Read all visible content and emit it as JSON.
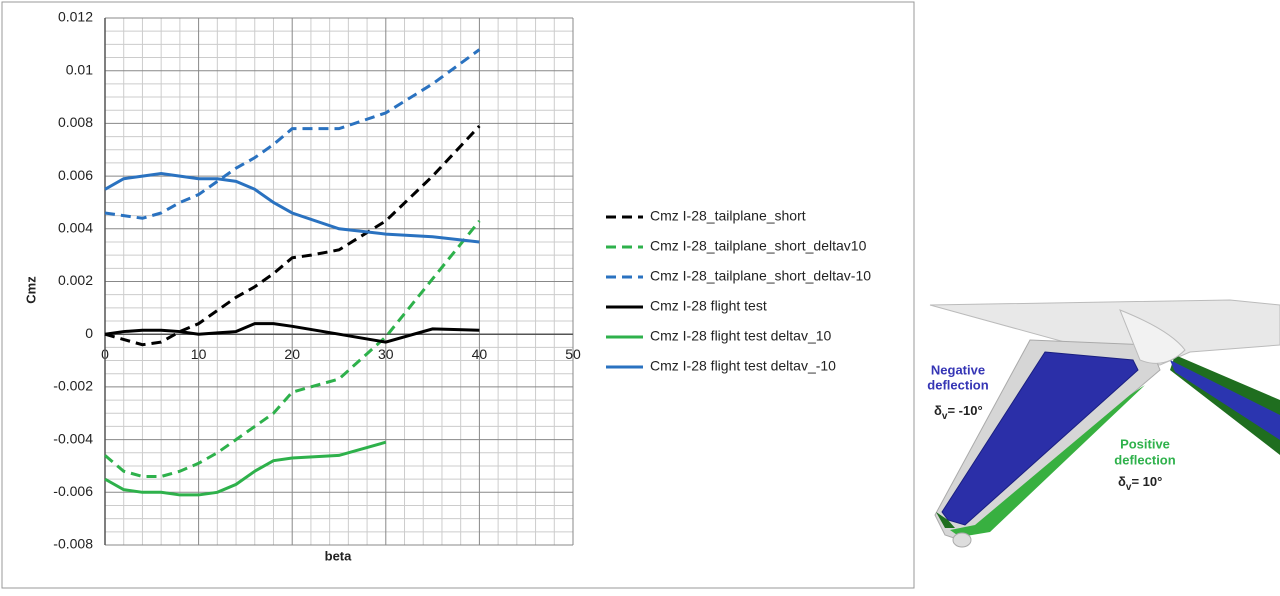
{
  "chart_data": {
    "type": "line",
    "xlabel": "beta",
    "ylabel": "Cmz",
    "xlim": [
      0,
      50
    ],
    "xticks": [
      0,
      10,
      20,
      30,
      40,
      50
    ],
    "ylim": [
      -0.008,
      0.012
    ],
    "yticks": [
      0.012,
      0.01,
      0.008,
      0.006,
      0.004,
      0.002,
      0,
      -0.002,
      -0.004,
      -0.006,
      -0.008
    ],
    "grid": true,
    "minor_grid": true,
    "legend": "right",
    "series": [
      {
        "name": "Cmz I-28_tailplane_short",
        "color": "#000000",
        "dashed": true,
        "x": [
          0,
          4,
          6,
          8,
          10,
          12,
          14,
          16,
          18,
          20,
          22,
          25,
          30,
          35,
          40
        ],
        "values": [
          0,
          -0.0004,
          -0.0003,
          0.0001,
          0.0004,
          0.0009,
          0.0014,
          0.0018,
          0.0023,
          0.0029,
          0.003,
          0.0032,
          0.0043,
          0.006,
          0.0079
        ]
      },
      {
        "name": "Cmz I-28_tailplane_short_deltav10",
        "color": "#2eb14b",
        "dashed": true,
        "x": [
          0,
          2,
          4,
          6,
          8,
          10,
          12,
          14,
          16,
          18,
          20,
          25,
          30,
          35,
          40
        ],
        "values": [
          -0.0046,
          -0.0052,
          -0.0054,
          -0.0054,
          -0.0052,
          -0.0049,
          -0.0045,
          -0.004,
          -0.0035,
          -0.003,
          -0.0022,
          -0.0017,
          -0.0001,
          0.0021,
          0.0043
        ]
      },
      {
        "name": "Cmz I-28_tailplane_short_deltav-10",
        "color": "#2a72c0",
        "dashed": true,
        "x": [
          0,
          2,
          4,
          6,
          8,
          10,
          12,
          14,
          16,
          18,
          20,
          22,
          25,
          30,
          35,
          40
        ],
        "values": [
          0.0046,
          0.0045,
          0.0044,
          0.0046,
          0.005,
          0.0053,
          0.0058,
          0.0063,
          0.0067,
          0.0072,
          0.0078,
          0.0078,
          0.0078,
          0.0084,
          0.0095,
          0.0108
        ]
      },
      {
        "name": "Cmz I-28 flight test",
        "color": "#000000",
        "dashed": false,
        "x": [
          0,
          2,
          4,
          6,
          8,
          10,
          12,
          14,
          16,
          18,
          20,
          25,
          30,
          35,
          40
        ],
        "values": [
          0,
          0.0001,
          0.00015,
          0.00015,
          0.0001,
          0,
          5e-05,
          0.0001,
          0.0004,
          0.0004,
          0.0003,
          0,
          -0.0003,
          0.0002,
          0.00015
        ]
      },
      {
        "name": "Cmz I-28 flight test deltav_10",
        "color": "#2eb14b",
        "dashed": false,
        "x": [
          0,
          2,
          4,
          6,
          8,
          10,
          12,
          14,
          16,
          18,
          20,
          25,
          30
        ],
        "values": [
          -0.0055,
          -0.0059,
          -0.006,
          -0.006,
          -0.0061,
          -0.0061,
          -0.006,
          -0.0057,
          -0.0052,
          -0.0048,
          -0.0047,
          -0.0046,
          -0.0041
        ]
      },
      {
        "name": "Cmz I-28 flight test deltav_-10",
        "color": "#2a72c0",
        "dashed": false,
        "x": [
          0,
          2,
          4,
          6,
          8,
          10,
          12,
          14,
          16,
          18,
          20,
          25,
          30,
          35,
          40
        ],
        "values": [
          0.0055,
          0.0059,
          0.006,
          0.0061,
          0.006,
          0.0059,
          0.0059,
          0.0058,
          0.0055,
          0.005,
          0.0046,
          0.004,
          0.0038,
          0.0037,
          0.0035
        ]
      }
    ]
  },
  "figure": {
    "negative": {
      "label": [
        "Negative",
        "deflection"
      ],
      "symbol": "δ",
      "sub": "v",
      "text": "= -10°"
    },
    "positive": {
      "label": [
        "Positive",
        "deflection"
      ],
      "symbol": "δ",
      "sub": "v",
      "text": "= 10°"
    }
  }
}
